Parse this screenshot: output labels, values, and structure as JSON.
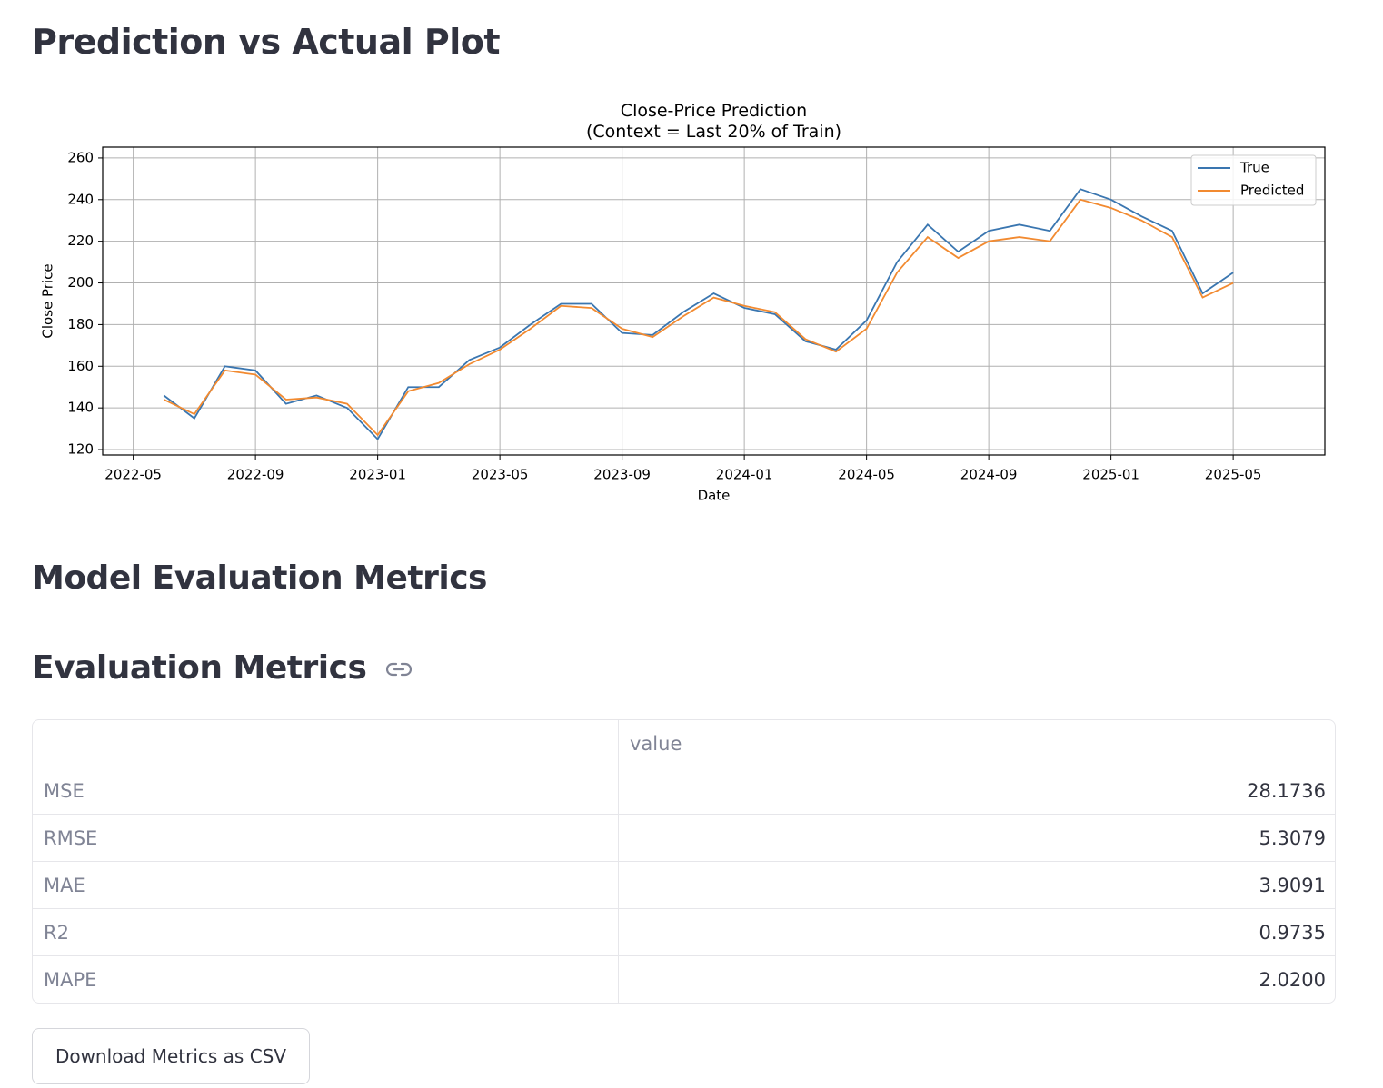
{
  "header": {
    "title": "Prediction vs Actual Plot"
  },
  "chart_data": {
    "type": "line",
    "title": "Close-Price Prediction\n(Context = Last 20% of Train)",
    "x_label": "Date",
    "y_label": "Close Price",
    "x": [
      "2022-06",
      "2022-07",
      "2022-08",
      "2022-09",
      "2022-10",
      "2022-11",
      "2022-12",
      "2023-01",
      "2023-02",
      "2023-03",
      "2023-04",
      "2023-05",
      "2023-06",
      "2023-07",
      "2023-08",
      "2023-09",
      "2023-10",
      "2023-11",
      "2023-12",
      "2024-01",
      "2024-02",
      "2024-03",
      "2024-04",
      "2024-05",
      "2024-06",
      "2024-07",
      "2024-08",
      "2024-09",
      "2024-10",
      "2024-11",
      "2024-12",
      "2025-01",
      "2025-02",
      "2025-03",
      "2025-04",
      "2025-05"
    ],
    "series": [
      {
        "name": "True",
        "color": "#3a76b0",
        "values": [
          146,
          135,
          160,
          158,
          142,
          146,
          140,
          125,
          150,
          150,
          163,
          169,
          180,
          190,
          190,
          176,
          175,
          186,
          195,
          188,
          185,
          172,
          168,
          182,
          210,
          228,
          215,
          225,
          228,
          225,
          245,
          240,
          232,
          225,
          195,
          205
        ]
      },
      {
        "name": "Predicted",
        "color": "#f28a30",
        "values": [
          144,
          137,
          158,
          156,
          144,
          145,
          142,
          127,
          148,
          152,
          161,
          168,
          178,
          189,
          188,
          178,
          174,
          184,
          193,
          189,
          186,
          173,
          167,
          178,
          205,
          222,
          212,
          220,
          222,
          220,
          240,
          236,
          230,
          222,
          193,
          200
        ]
      }
    ],
    "xlim": [
      "2022-04",
      "2025-08"
    ],
    "xticks": [
      "2022-05",
      "2022-09",
      "2023-01",
      "2023-05",
      "2023-09",
      "2024-01",
      "2024-05",
      "2024-09",
      "2025-01",
      "2025-05"
    ],
    "ylim": [
      117.4,
      265.2
    ],
    "yticks": [
      120,
      140,
      160,
      180,
      200,
      220,
      240,
      260
    ],
    "grid": true,
    "legend": "upper right"
  },
  "sections": [
    "Model Evaluation Metrics",
    "Evaluation Metrics"
  ],
  "table": {
    "header": "value",
    "rows": [
      [
        "MSE",
        "28.1736"
      ],
      [
        "RMSE",
        "5.3079"
      ],
      [
        "MAE",
        "3.9091"
      ],
      [
        "R2",
        "0.9735"
      ],
      [
        "MAPE",
        "2.0200"
      ]
    ]
  },
  "button": "Download Metrics as CSV"
}
